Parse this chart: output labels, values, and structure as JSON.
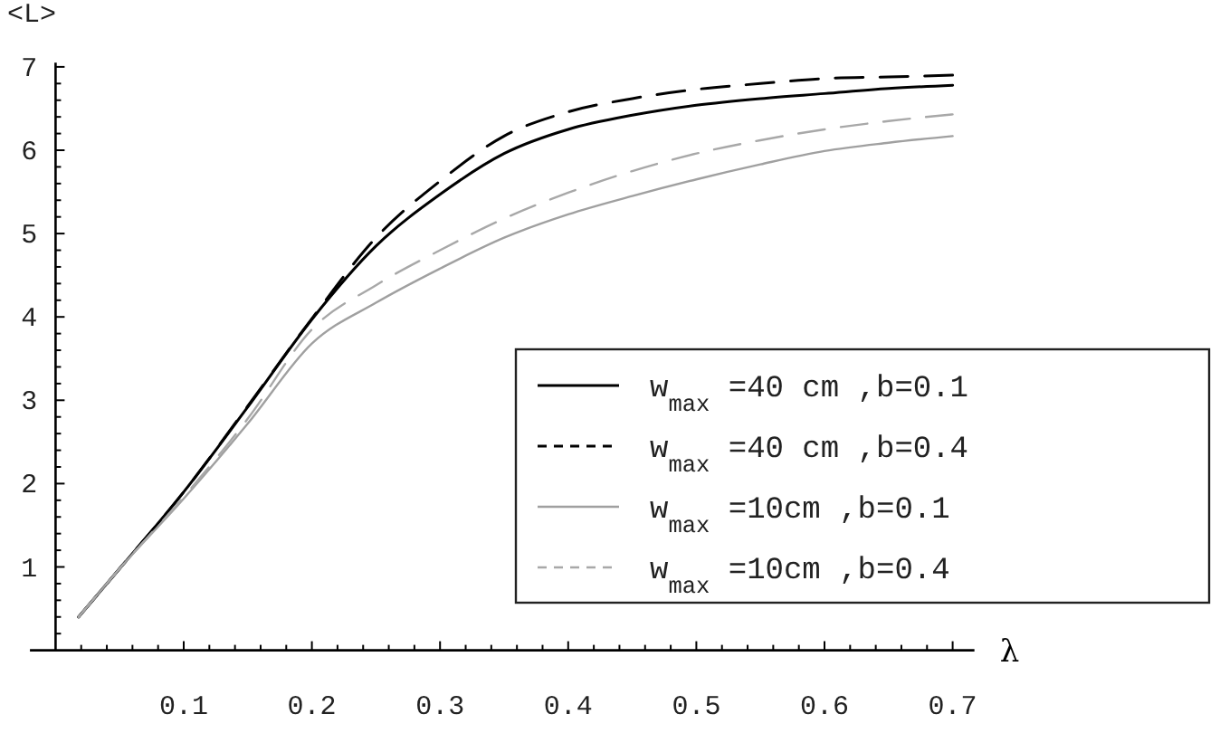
{
  "chart_data": {
    "type": "line",
    "xlabel": "λ",
    "ylabel": "<L>",
    "xlim": [
      -0.02,
      0.717
    ],
    "ylim": [
      0,
      7.05
    ],
    "xticks": [
      {
        "value": 0.02,
        "label": null
      },
      {
        "value": 0.04,
        "label": null
      },
      {
        "value": 0.06,
        "label": null
      },
      {
        "value": 0.08,
        "label": null
      },
      0.1,
      {
        "value": 0.12,
        "label": null
      },
      {
        "value": 0.14,
        "label": null
      },
      {
        "value": 0.16,
        "label": null
      },
      {
        "value": 0.18,
        "label": null
      },
      0.2,
      {
        "value": 0.22,
        "label": null
      },
      {
        "value": 0.24,
        "label": null
      },
      {
        "value": 0.26,
        "label": null
      },
      {
        "value": 0.28,
        "label": null
      },
      0.3,
      {
        "value": 0.32,
        "label": null
      },
      {
        "value": 0.34,
        "label": null
      },
      {
        "value": 0.36,
        "label": null
      },
      {
        "value": 0.38,
        "label": null
      },
      0.4,
      {
        "value": 0.42,
        "label": null
      },
      {
        "value": 0.44,
        "label": null
      },
      {
        "value": 0.46,
        "label": null
      },
      {
        "value": 0.48,
        "label": null
      },
      0.5,
      {
        "value": 0.52,
        "label": null
      },
      {
        "value": 0.54,
        "label": null
      },
      {
        "value": 0.56,
        "label": null
      },
      {
        "value": 0.58,
        "label": null
      },
      0.6,
      {
        "value": 0.62,
        "label": null
      },
      {
        "value": 0.64,
        "label": null
      },
      {
        "value": 0.66,
        "label": null
      },
      {
        "value": 0.68,
        "label": null
      },
      0.7
    ],
    "yticks": [
      {
        "value": 0.2,
        "label": null
      },
      {
        "value": 0.4,
        "label": null
      },
      {
        "value": 0.6,
        "label": null
      },
      {
        "value": 0.8,
        "label": null
      },
      1,
      {
        "value": 1.2,
        "label": null
      },
      {
        "value": 1.4,
        "label": null
      },
      {
        "value": 1.6,
        "label": null
      },
      {
        "value": 1.8,
        "label": null
      },
      2,
      {
        "value": 2.2,
        "label": null
      },
      {
        "value": 2.4,
        "label": null
      },
      {
        "value": 2.6,
        "label": null
      },
      {
        "value": 2.8,
        "label": null
      },
      3,
      {
        "value": 3.2,
        "label": null
      },
      {
        "value": 3.4,
        "label": null
      },
      {
        "value": 3.6,
        "label": null
      },
      {
        "value": 3.8,
        "label": null
      },
      4,
      {
        "value": 4.2,
        "label": null
      },
      {
        "value": 4.4,
        "label": null
      },
      {
        "value": 4.6,
        "label": null
      },
      {
        "value": 4.8,
        "label": null
      },
      5,
      {
        "value": 5.2,
        "label": null
      },
      {
        "value": 5.4,
        "label": null
      },
      {
        "value": 5.6,
        "label": null
      },
      {
        "value": 5.8,
        "label": null
      },
      6,
      {
        "value": 6.2,
        "label": null
      },
      {
        "value": 6.4,
        "label": null
      },
      {
        "value": 6.6,
        "label": null
      },
      {
        "value": 6.8,
        "label": null
      },
      7
    ],
    "x": [
      0.018,
      0.05,
      0.1,
      0.15,
      0.2,
      0.25,
      0.3,
      0.35,
      0.4,
      0.45,
      0.5,
      0.55,
      0.6,
      0.65,
      0.7
    ],
    "legend": "bottom right",
    "grid": false,
    "marker": "none",
    "series": [
      {
        "name": "w$_{max}$ =40 cm ,b=0.1",
        "color": "#000000",
        "line_style": "solid",
        "values": [
          0.4,
          0.98,
          1.9,
          2.92,
          3.97,
          4.85,
          5.47,
          5.96,
          6.25,
          6.42,
          6.54,
          6.62,
          6.68,
          6.74,
          6.78
        ]
      },
      {
        "name": "w$_{max}$ =40 cm ,b=0.4",
        "color": "#000000",
        "line_style": "dashed",
        "values": [
          0.4,
          0.98,
          1.9,
          2.93,
          3.98,
          4.95,
          5.63,
          6.17,
          6.46,
          6.62,
          6.73,
          6.8,
          6.86,
          6.88,
          6.9
        ]
      },
      {
        "name": "w$_{max}$ =10cm ,b=0.1",
        "color": "#a0a0a0",
        "line_style": "solid",
        "values": [
          0.4,
          0.98,
          1.82,
          2.72,
          3.68,
          4.17,
          4.58,
          4.95,
          5.23,
          5.45,
          5.65,
          5.83,
          5.99,
          6.09,
          6.17
        ]
      },
      {
        "name": "w$_{max}$ =10cm ,b=0.4",
        "color": "#a8a8a8",
        "line_style": "dashed",
        "values": [
          0.4,
          0.98,
          1.84,
          2.78,
          3.85,
          4.38,
          4.8,
          5.18,
          5.49,
          5.75,
          5.96,
          6.12,
          6.25,
          6.35,
          6.43
        ]
      }
    ]
  }
}
